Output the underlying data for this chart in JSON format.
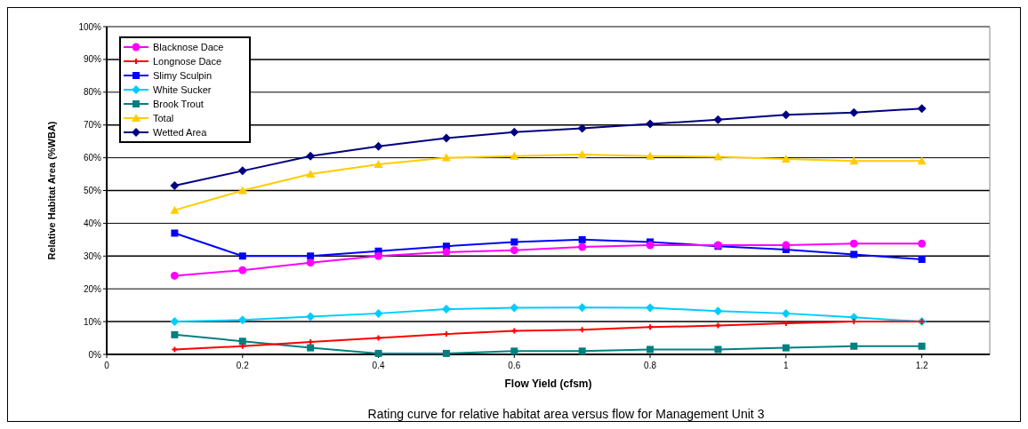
{
  "chart_data": {
    "type": "line",
    "title": "Rating curve for relative habitat area versus flow for Management Unit 3",
    "xlabel": "Flow Yield (cfsm)",
    "ylabel": "Relative Habitat Area (%WBA)",
    "x": [
      0.1,
      0.2,
      0.3,
      0.4,
      0.5,
      0.6,
      0.7,
      0.8,
      0.9,
      1.0,
      1.1,
      1.2
    ],
    "xlim": [
      0,
      1.3
    ],
    "xticks": [
      0,
      0.2,
      0.4,
      0.6,
      0.8,
      1,
      1.2
    ],
    "ylim": [
      0,
      100
    ],
    "yticks": [
      {
        "value": 0,
        "label": "0%"
      },
      {
        "value": 10,
        "label": "10%"
      },
      {
        "value": 20,
        "label": "20%"
      },
      {
        "value": 30,
        "label": "30%"
      },
      {
        "value": 40,
        "label": "40%"
      },
      {
        "value": 50,
        "label": "50%"
      },
      {
        "value": 60,
        "label": "60%"
      },
      {
        "value": 70,
        "label": "70%"
      },
      {
        "value": 80,
        "label": "80%"
      },
      {
        "value": 90,
        "label": "90%"
      },
      {
        "value": 100,
        "label": "100%"
      }
    ],
    "grid": "y",
    "legend": "top left",
    "line_style": "solid",
    "series": [
      {
        "name": "Blacknose Dace",
        "color": "#ff00ff",
        "marker": "circle",
        "values": [
          24,
          25.7,
          28,
          30,
          31.2,
          31.8,
          32.8,
          33.3,
          33.3,
          33.3,
          33.8,
          33.8
        ]
      },
      {
        "name": "Longnose Dace",
        "color": "#ff0000",
        "marker": "cross",
        "values": [
          1.5,
          2.5,
          3.8,
          5,
          6.2,
          7.2,
          7.5,
          8.3,
          8.8,
          9.5,
          10,
          10
        ]
      },
      {
        "name": "Slimy Sculpin",
        "color": "#0000ff",
        "marker": "square",
        "values": [
          37,
          30,
          30,
          31.5,
          33,
          34.3,
          35,
          34.3,
          33,
          32,
          30.5,
          29
        ]
      },
      {
        "name": "White Sucker",
        "color": "#00ccff",
        "marker": "diamond",
        "values": [
          10,
          10.5,
          11.5,
          12.5,
          13.8,
          14.2,
          14.3,
          14.2,
          13.2,
          12.5,
          11.3,
          10
        ]
      },
      {
        "name": "Brook Trout",
        "color": "#008080",
        "marker": "square",
        "values": [
          6,
          4,
          2,
          0.3,
          0.3,
          1,
          1,
          1.5,
          1.5,
          2,
          2.5,
          2.5
        ]
      },
      {
        "name": "Total",
        "color": "#ffcc00",
        "marker": "triangle",
        "values": [
          44,
          50,
          55,
          58,
          60,
          60.5,
          61,
          60.5,
          60.3,
          59.6,
          59,
          59
        ]
      },
      {
        "name": "Wetted Area",
        "color": "#000080",
        "marker": "diamond",
        "values": [
          51.5,
          56,
          60.5,
          63.5,
          66,
          67.8,
          69,
          70.3,
          71.6,
          73.1,
          73.8,
          75
        ]
      }
    ]
  }
}
